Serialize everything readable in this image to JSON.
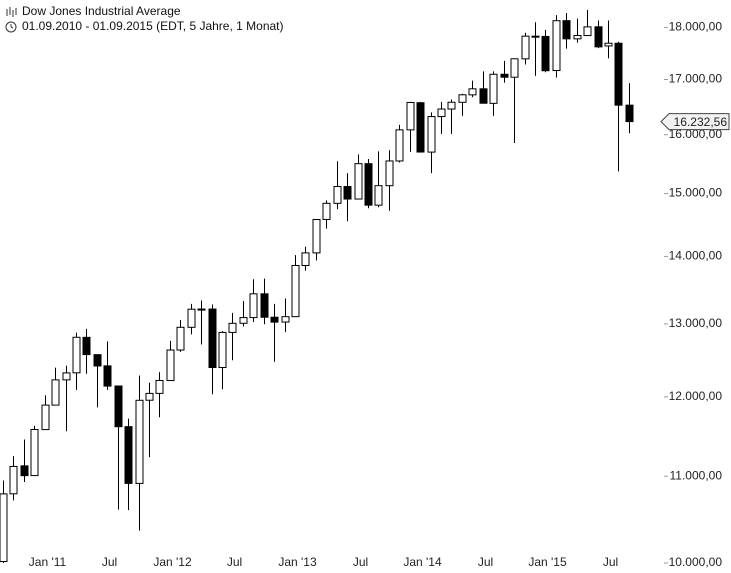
{
  "chart_data": {
    "type": "candlestick",
    "title": "Dow Jones Industrial Average",
    "subtitle": "01.09.2010 - 01.09.2015 (EDT, 5 Jahre, 1 Monat)",
    "log_scale": true,
    "up_color": "#ffffff",
    "down_color": "#000000",
    "ylim": [
      10000,
      18550
    ],
    "yticks": [
      {
        "value": 10000,
        "label": "10.000,00"
      },
      {
        "value": 11000,
        "label": "11.000,00"
      },
      {
        "value": 12000,
        "label": "12.000,00"
      },
      {
        "value": 13000,
        "label": "13.000,00"
      },
      {
        "value": 14000,
        "label": "14.000,00"
      },
      {
        "value": 15000,
        "label": "15.000,00"
      },
      {
        "value": 16000,
        "label": "16.000,00"
      },
      {
        "value": 17000,
        "label": "17.000,00"
      },
      {
        "value": 18000,
        "label": "18.000,00"
      }
    ],
    "last_price": {
      "value": 16232.56,
      "label": "16.232,56"
    },
    "categories": [
      null,
      null,
      null,
      null,
      "Jan '11",
      null,
      null,
      null,
      null,
      null,
      "Jul",
      null,
      null,
      null,
      null,
      null,
      "Jan '12",
      null,
      null,
      null,
      null,
      null,
      "Jul",
      null,
      null,
      null,
      null,
      null,
      "Jan '13",
      null,
      null,
      null,
      null,
      null,
      "Jul",
      null,
      null,
      null,
      null,
      null,
      "Jan '14",
      null,
      null,
      null,
      null,
      null,
      "Jul",
      null,
      null,
      null,
      null,
      null,
      "Jan '15",
      null,
      null,
      null,
      null,
      null,
      "Jul",
      null,
      null
    ],
    "open": [
      10016,
      10789,
      11125,
      11007,
      11577,
      11892,
      12226,
      12321,
      12810,
      12569,
      12415,
      12144,
      11614,
      10913,
      11956,
      12046,
      12217,
      12633,
      12952,
      13212,
      13214,
      12393,
      12880,
      13009,
      13091,
      13437,
      13096,
      13027,
      13104,
      13861,
      14054,
      14580,
      14840,
      15116,
      14910,
      15500,
      14810,
      15130,
      15546,
      16086,
      16572,
      15698,
      16322,
      16458,
      16580,
      16716,
      16827,
      16561,
      17098,
      17043,
      17390,
      17828,
      17823,
      17169,
      18134,
      17776,
      17840,
      18012,
      17638,
      17690,
      16528
    ],
    "high": [
      10948,
      11244,
      11452,
      11625,
      12021,
      12391,
      12419,
      12876,
      12929,
      12570,
      12753,
      12148,
      11717,
      12284,
      12188,
      12330,
      12760,
      13056,
      13289,
      13338,
      13280,
      12898,
      13159,
      13331,
      13653,
      13662,
      13290,
      13368,
      14020,
      14150,
      14586,
      14888,
      15542,
      15341,
      15658,
      15580,
      15710,
      15731,
      16175,
      16588,
      16588,
      16398,
      16588,
      16632,
      16736,
      16978,
      17152,
      17153,
      17350,
      17395,
      17894,
      18103,
      17951,
      18244,
      18288,
      18175,
      18351,
      18137,
      18137,
      17719,
      16933
    ],
    "low": [
      10000,
      10711,
      10929,
      11007,
      11577,
      11891,
      11555,
      12093,
      12309,
      11862,
      12093,
      10604,
      10597,
      10362,
      11232,
      11735,
      12217,
      12607,
      12852,
      12710,
      12035,
      12101,
      12492,
      12964,
      13027,
      12995,
      12471,
      12883,
      13104,
      13784,
      13937,
      14434,
      14746,
      14551,
      14910,
      14760,
      14777,
      14719,
      15521,
      15703,
      15699,
      15340,
      16016,
      16015,
      16334,
      16675,
      16563,
      16334,
      16943,
      15855,
      17282,
      17067,
      17136,
      17038,
      17585,
      17703,
      17841,
      17596,
      17399,
      15370,
      16026
    ],
    "close": [
      10788,
      11118,
      11006,
      11578,
      11892,
      12226,
      12320,
      12811,
      12570,
      12414,
      12143,
      11614,
      10913,
      11955,
      12046,
      12218,
      12633,
      12952,
      13212,
      13214,
      12393,
      12880,
      13009,
      13091,
      13437,
      13096,
      13026,
      13104,
      13861,
      14054,
      14579,
      14840,
      15116,
      14910,
      15500,
      14810,
      15130,
      15546,
      16086,
      16577,
      15699,
      16322,
      16458,
      16581,
      16717,
      16827,
      16563,
      17098,
      17043,
      17391,
      17828,
      17823,
      17165,
      18133,
      17776,
      17841,
      18011,
      17620,
      17690,
      16528,
      16232.56
    ]
  }
}
